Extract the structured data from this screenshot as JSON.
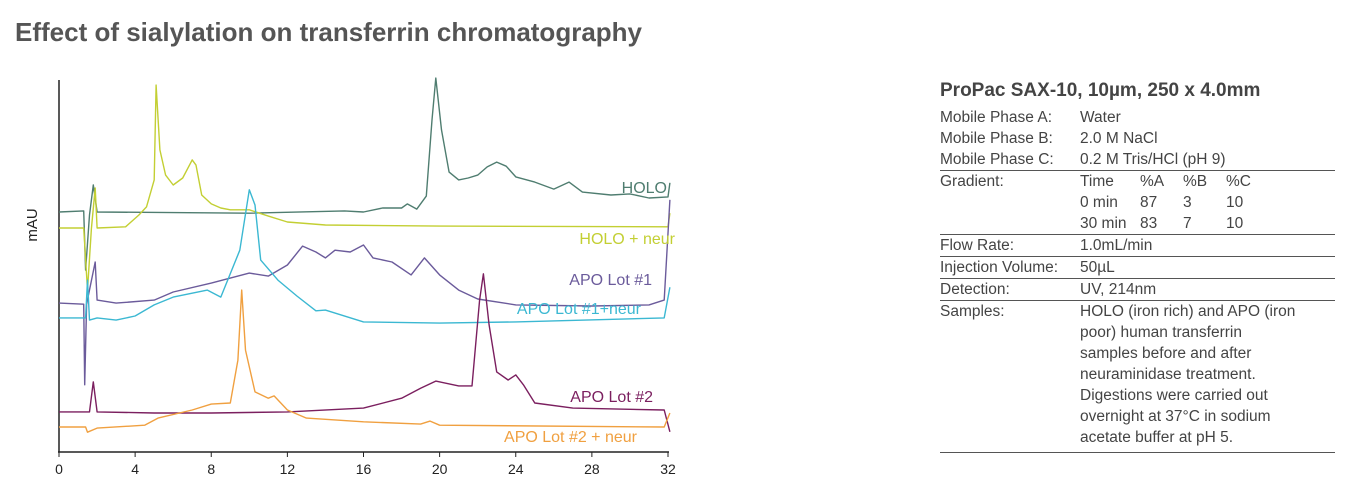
{
  "title": "Effect of sialylation on transferrin chromatography",
  "panel": {
    "title": "ProPac SAX-10, 10µm, 250 x 4.0mm",
    "mobile_phases": [
      {
        "label": "Mobile Phase A:",
        "value": "Water"
      },
      {
        "label": "Mobile Phase B:",
        "value": "2.0 M NaCl"
      },
      {
        "label": "Mobile Phase C:",
        "value": "0.2 M Tris/HCl (pH 9)"
      }
    ],
    "gradient_label": "Gradient:",
    "gradient": [
      [
        "Time",
        "%A",
        "%B",
        "%C"
      ],
      [
        "0 min",
        "87",
        "3",
        "10"
      ],
      [
        "30 min",
        "83",
        "7",
        "10"
      ]
    ],
    "flow_label": "Flow Rate:",
    "flow": "1.0mL/min",
    "inj_label": "Injection Volume:",
    "inj": "50µL",
    "det_label": "Detection:",
    "det": "UV, 214nm",
    "samples_label": "Samples:",
    "samples": [
      "HOLO (iron rich) and APO (iron",
      "poor) human transferrin",
      "samples before and after",
      "neuraminidase treatment.",
      "Digestions were carried out",
      "overnight at 37°C in sodium",
      "acetate buffer at pH 5."
    ]
  },
  "chart_data": {
    "type": "line",
    "title": "Effect of sialylation on transferrin chromatography",
    "xlabel": "",
    "ylabel": "mAU",
    "xlim": [
      0,
      32
    ],
    "ylim": [
      0,
      100
    ],
    "xticks": [
      0,
      4,
      8,
      12,
      16,
      20,
      24,
      28,
      32
    ],
    "grid": false,
    "series": [
      {
        "name": "HOLO",
        "color": "#4f7d70",
        "points": [
          [
            0,
            63.5
          ],
          [
            1.3,
            63.8
          ],
          [
            1.4,
            47.8
          ],
          [
            1.6,
            62.7
          ],
          [
            1.8,
            70.8
          ],
          [
            2,
            63.5
          ],
          [
            10,
            63.2
          ],
          [
            15,
            63.8
          ],
          [
            16,
            63.5
          ],
          [
            17,
            64.6
          ],
          [
            18,
            64.6
          ],
          [
            18.3,
            65.7
          ],
          [
            18.8,
            64.3
          ],
          [
            19.3,
            67.8
          ],
          [
            19.6,
            88.4
          ],
          [
            19.8,
            99.7
          ],
          [
            20.1,
            85.7
          ],
          [
            20.5,
            74.3
          ],
          [
            21,
            72.2
          ],
          [
            21.5,
            72.7
          ],
          [
            22,
            73.5
          ],
          [
            22.5,
            75.7
          ],
          [
            23,
            77
          ],
          [
            23.5,
            75.9
          ],
          [
            24,
            73
          ],
          [
            25,
            71.6
          ],
          [
            26,
            69.7
          ],
          [
            26.8,
            71.6
          ],
          [
            27.5,
            68.9
          ],
          [
            29,
            68.1
          ],
          [
            30,
            68.4
          ],
          [
            31,
            67.3
          ],
          [
            32,
            67.6
          ],
          [
            32.1,
            71.4
          ]
        ]
      },
      {
        "name": "HOLO +  neur",
        "color": "#c3cf33",
        "points": [
          [
            0,
            59.2
          ],
          [
            1.3,
            59.2
          ],
          [
            1.5,
            42.4
          ],
          [
            1.7,
            59
          ],
          [
            1.9,
            70
          ],
          [
            2,
            59.2
          ],
          [
            3.5,
            59.5
          ],
          [
            4.2,
            62.7
          ],
          [
            4.6,
            64.9
          ],
          [
            5,
            72.2
          ],
          [
            5.1,
            97.8
          ],
          [
            5.3,
            80.3
          ],
          [
            5.6,
            73.5
          ],
          [
            6,
            70.8
          ],
          [
            6.5,
            72.7
          ],
          [
            7,
            77.6
          ],
          [
            7.2,
            76.2
          ],
          [
            7.5,
            68.1
          ],
          [
            8,
            65.7
          ],
          [
            8.5,
            64.6
          ],
          [
            9,
            64.1
          ],
          [
            10,
            64.1
          ],
          [
            11,
            62.4
          ],
          [
            12,
            60.8
          ],
          [
            14,
            60
          ],
          [
            20,
            59.7
          ],
          [
            32,
            59.5
          ],
          [
            32.1,
            63.2
          ]
        ]
      },
      {
        "name": "APO Lot #1",
        "color": "#6b5b9b",
        "points": [
          [
            0,
            38.9
          ],
          [
            1.3,
            38.6
          ],
          [
            1.35,
            16.8
          ],
          [
            1.45,
            38.6
          ],
          [
            1.9,
            50
          ],
          [
            2,
            39.7
          ],
          [
            3,
            38.9
          ],
          [
            5,
            39.7
          ],
          [
            6,
            41.9
          ],
          [
            8,
            44.3
          ],
          [
            10,
            47
          ],
          [
            11,
            46.2
          ],
          [
            12,
            49.2
          ],
          [
            12.8,
            54.3
          ],
          [
            13.5,
            52.7
          ],
          [
            14,
            51.1
          ],
          [
            14.5,
            53.2
          ],
          [
            15.3,
            52.7
          ],
          [
            16,
            54.6
          ],
          [
            16.5,
            51.1
          ],
          [
            17.5,
            50
          ],
          [
            18.5,
            46.5
          ],
          [
            19.2,
            51.1
          ],
          [
            20,
            46.5
          ],
          [
            21,
            42.4
          ],
          [
            22,
            40
          ],
          [
            24,
            38.4
          ],
          [
            28,
            38.1
          ],
          [
            31,
            38.4
          ],
          [
            31.8,
            39.7
          ],
          [
            32.1,
            66.8
          ]
        ]
      },
      {
        "name": "APO Lot #1+neur",
        "color": "#3bb8d2",
        "points": [
          [
            0,
            34.9
          ],
          [
            1.4,
            34.9
          ],
          [
            1.5,
            45.1
          ],
          [
            1.6,
            34.3
          ],
          [
            2,
            34.9
          ],
          [
            3,
            34.3
          ],
          [
            4,
            35.4
          ],
          [
            5,
            38.4
          ],
          [
            6,
            40.5
          ],
          [
            7.8,
            42.4
          ],
          [
            8.5,
            40.5
          ],
          [
            9.5,
            53.2
          ],
          [
            10,
            69.5
          ],
          [
            10.3,
            65.4
          ],
          [
            10.6,
            50.5
          ],
          [
            11.5,
            45.1
          ],
          [
            12.5,
            40.8
          ],
          [
            13.5,
            36.8
          ],
          [
            14,
            37
          ],
          [
            16,
            33.8
          ],
          [
            20,
            33.5
          ],
          [
            24,
            33.8
          ],
          [
            31.8,
            34.9
          ],
          [
            32.1,
            43.2
          ]
        ]
      },
      {
        "name": "APO Lot #2",
        "color": "#7b1f5f",
        "points": [
          [
            0,
            9.5
          ],
          [
            1.6,
            9.5
          ],
          [
            1.8,
            17.6
          ],
          [
            2,
            9.5
          ],
          [
            5,
            9.2
          ],
          [
            8,
            9.2
          ],
          [
            12,
            9.5
          ],
          [
            16,
            10.5
          ],
          [
            18,
            13.2
          ],
          [
            19,
            15.9
          ],
          [
            19.8,
            17.8
          ],
          [
            21,
            16.5
          ],
          [
            21.7,
            16.5
          ],
          [
            22.1,
            39.7
          ],
          [
            22.3,
            46.8
          ],
          [
            22.6,
            33
          ],
          [
            23,
            20.3
          ],
          [
            23.6,
            18.1
          ],
          [
            24,
            19.5
          ],
          [
            24.4,
            16.8
          ],
          [
            25,
            11.9
          ],
          [
            27,
            10.5
          ],
          [
            31.8,
            10
          ],
          [
            32.1,
            4.1
          ]
        ]
      },
      {
        "name": "APO Lot #2 + neur",
        "color": "#f0a040",
        "points": [
          [
            0,
            5.4
          ],
          [
            1.4,
            5.4
          ],
          [
            1.5,
            4
          ],
          [
            2,
            5.1
          ],
          [
            4.5,
            5.9
          ],
          [
            5.2,
            7.8
          ],
          [
            7,
            10
          ],
          [
            8,
            11.6
          ],
          [
            9,
            11.9
          ],
          [
            9.4,
            23.5
          ],
          [
            9.6,
            42.4
          ],
          [
            9.8,
            26.2
          ],
          [
            10.3,
            14.9
          ],
          [
            11,
            13.2
          ],
          [
            11.3,
            13.8
          ],
          [
            12,
            10
          ],
          [
            13,
            7.8
          ],
          [
            16,
            6.8
          ],
          [
            19,
            6.2
          ],
          [
            19.5,
            7
          ],
          [
            20,
            5.9
          ],
          [
            31.8,
            5.4
          ],
          [
            32.1,
            9.2
          ]
        ]
      }
    ]
  }
}
